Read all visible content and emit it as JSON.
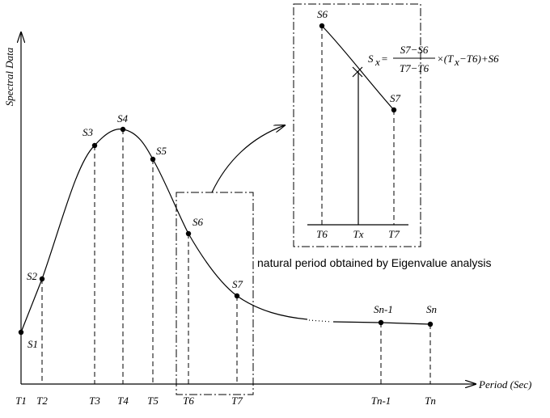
{
  "axes": {
    "y_label": "Spectral Data",
    "x_label": "Period (Sec)"
  },
  "points": [
    {
      "label": "S1",
      "tick": "T1"
    },
    {
      "label": "S2",
      "tick": "T2"
    },
    {
      "label": "S3",
      "tick": "T3"
    },
    {
      "label": "S4",
      "tick": "T4"
    },
    {
      "label": "S5",
      "tick": "T5"
    },
    {
      "label": "S6",
      "tick": "T6"
    },
    {
      "label": "S7",
      "tick": "T7"
    },
    {
      "label": "Sn-1",
      "tick": "Tn-1"
    },
    {
      "label": "Sn",
      "tick": "Tn"
    }
  ],
  "inset": {
    "points": [
      {
        "label": "S6",
        "tick": "T6"
      },
      {
        "label": "S7",
        "tick": "T7"
      }
    ],
    "x_tick": "Tx",
    "formula": {
      "lhs": "S",
      "lhs_sub": "x",
      "equals": "=",
      "numerator": "S7−S6",
      "denominator": "T7−T6",
      "times": "×(T",
      "times_sub": "x",
      "rest": "−T6)+S6"
    }
  },
  "caption": "natural period obtained by Eigenvalue analysis"
}
